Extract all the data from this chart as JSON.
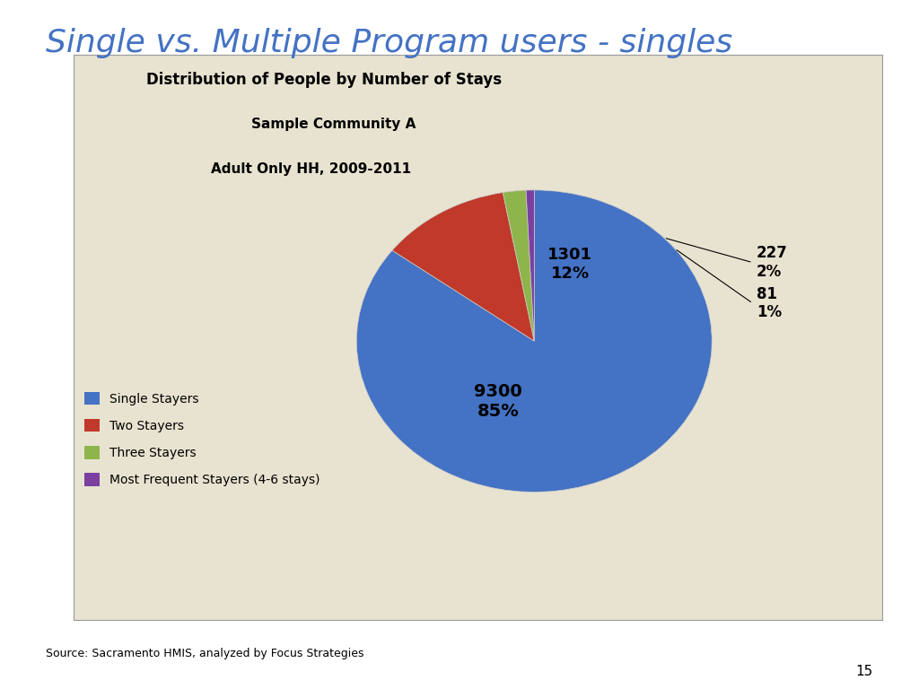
{
  "title": "Single vs. Multiple Program users - singles",
  "chart_title_line1": "Distribution of People by Number of Stays",
  "chart_title_line2": "Sample Community A",
  "chart_title_line3": "Adult Only HH, 2009-2011",
  "labels": [
    "Single Stayers",
    "Two Stayers",
    "Three Stayers",
    "Most Frequent Stayers (4-6 stays)"
  ],
  "values": [
    9300,
    1301,
    227,
    81
  ],
  "colors": [
    "#4472C4",
    "#C0392B",
    "#8DB54B",
    "#7B3FA0"
  ],
  "source": "Source: Sacramento HMIS, analyzed by Focus Strategies",
  "page_number": "15",
  "background_color": "#E8E3D0",
  "title_color": "#4472C4",
  "label_9300": "9300\n85%",
  "label_1301": "1301\n12%",
  "label_227": "227\n2%",
  "label_81": "81\n1%"
}
